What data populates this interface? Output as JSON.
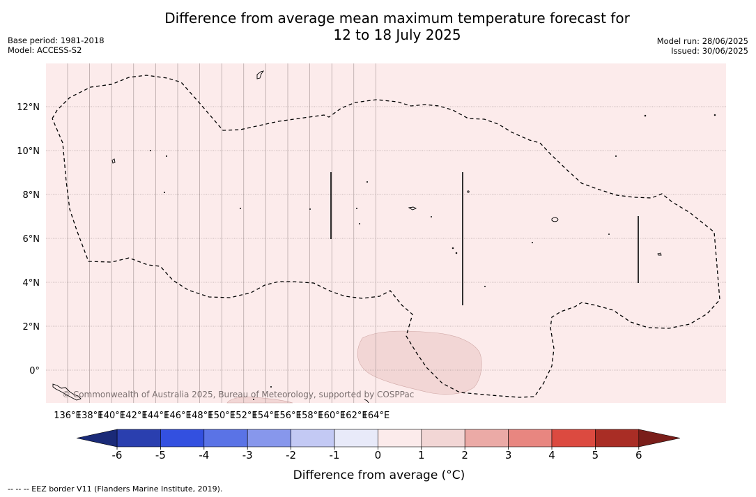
{
  "title": {
    "line1": "Difference from average mean maximum temperature forecast for",
    "line2": "12 to 18 July 2025"
  },
  "meta_left": {
    "base_period": "Base period: 1981-2018",
    "model": "Model: ACCESS-S2"
  },
  "meta_right": {
    "model_run": "Model run: 28/06/2025",
    "issued": "Issued: 30/06/2025"
  },
  "map": {
    "lon_ticks": [
      "136°E",
      "138°E",
      "140°E",
      "142°E",
      "144°E",
      "146°E",
      "148°E",
      "150°E",
      "152°E",
      "154°E",
      "156°E",
      "158°E",
      "160°E",
      "162°E",
      "164°E"
    ],
    "lat_ticks": [
      "12°N",
      "10°N",
      "8°N",
      "6°N",
      "4°N",
      "2°N",
      "0°"
    ],
    "background_category": "0 to 1",
    "watermark": "© Commonwealth of Australia 2025, Bureau of Meteorology, supported by COSPPac"
  },
  "colorbar": {
    "label": "Difference from average (°C)",
    "ticks": [
      "-6",
      "-5",
      "-4",
      "-3",
      "-2",
      "-1",
      "0",
      "1",
      "2",
      "3",
      "4",
      "5",
      "6"
    ],
    "colors": {
      "below_-6": "#1a2a78",
      "-6_-5": "#2a3faf",
      "-5_-4": "#3350e0",
      "-4_-3": "#5a73e6",
      "-3_-2": "#8797ec",
      "-2_-1": "#c3c9f4",
      "-1_0": "#e8eaf9",
      "0_1": "#fcebeb",
      "1_2": "#f2d6d5",
      "2_3": "#ebaaa6",
      "3_4": "#e88680",
      "4_5": "#dc4a40",
      "5_6": "#a92d25",
      "above_6": "#7a1e1a"
    }
  },
  "footnote": "--  --  -- EEZ border V11 (Flanders Marine Institute, 2019)."
}
